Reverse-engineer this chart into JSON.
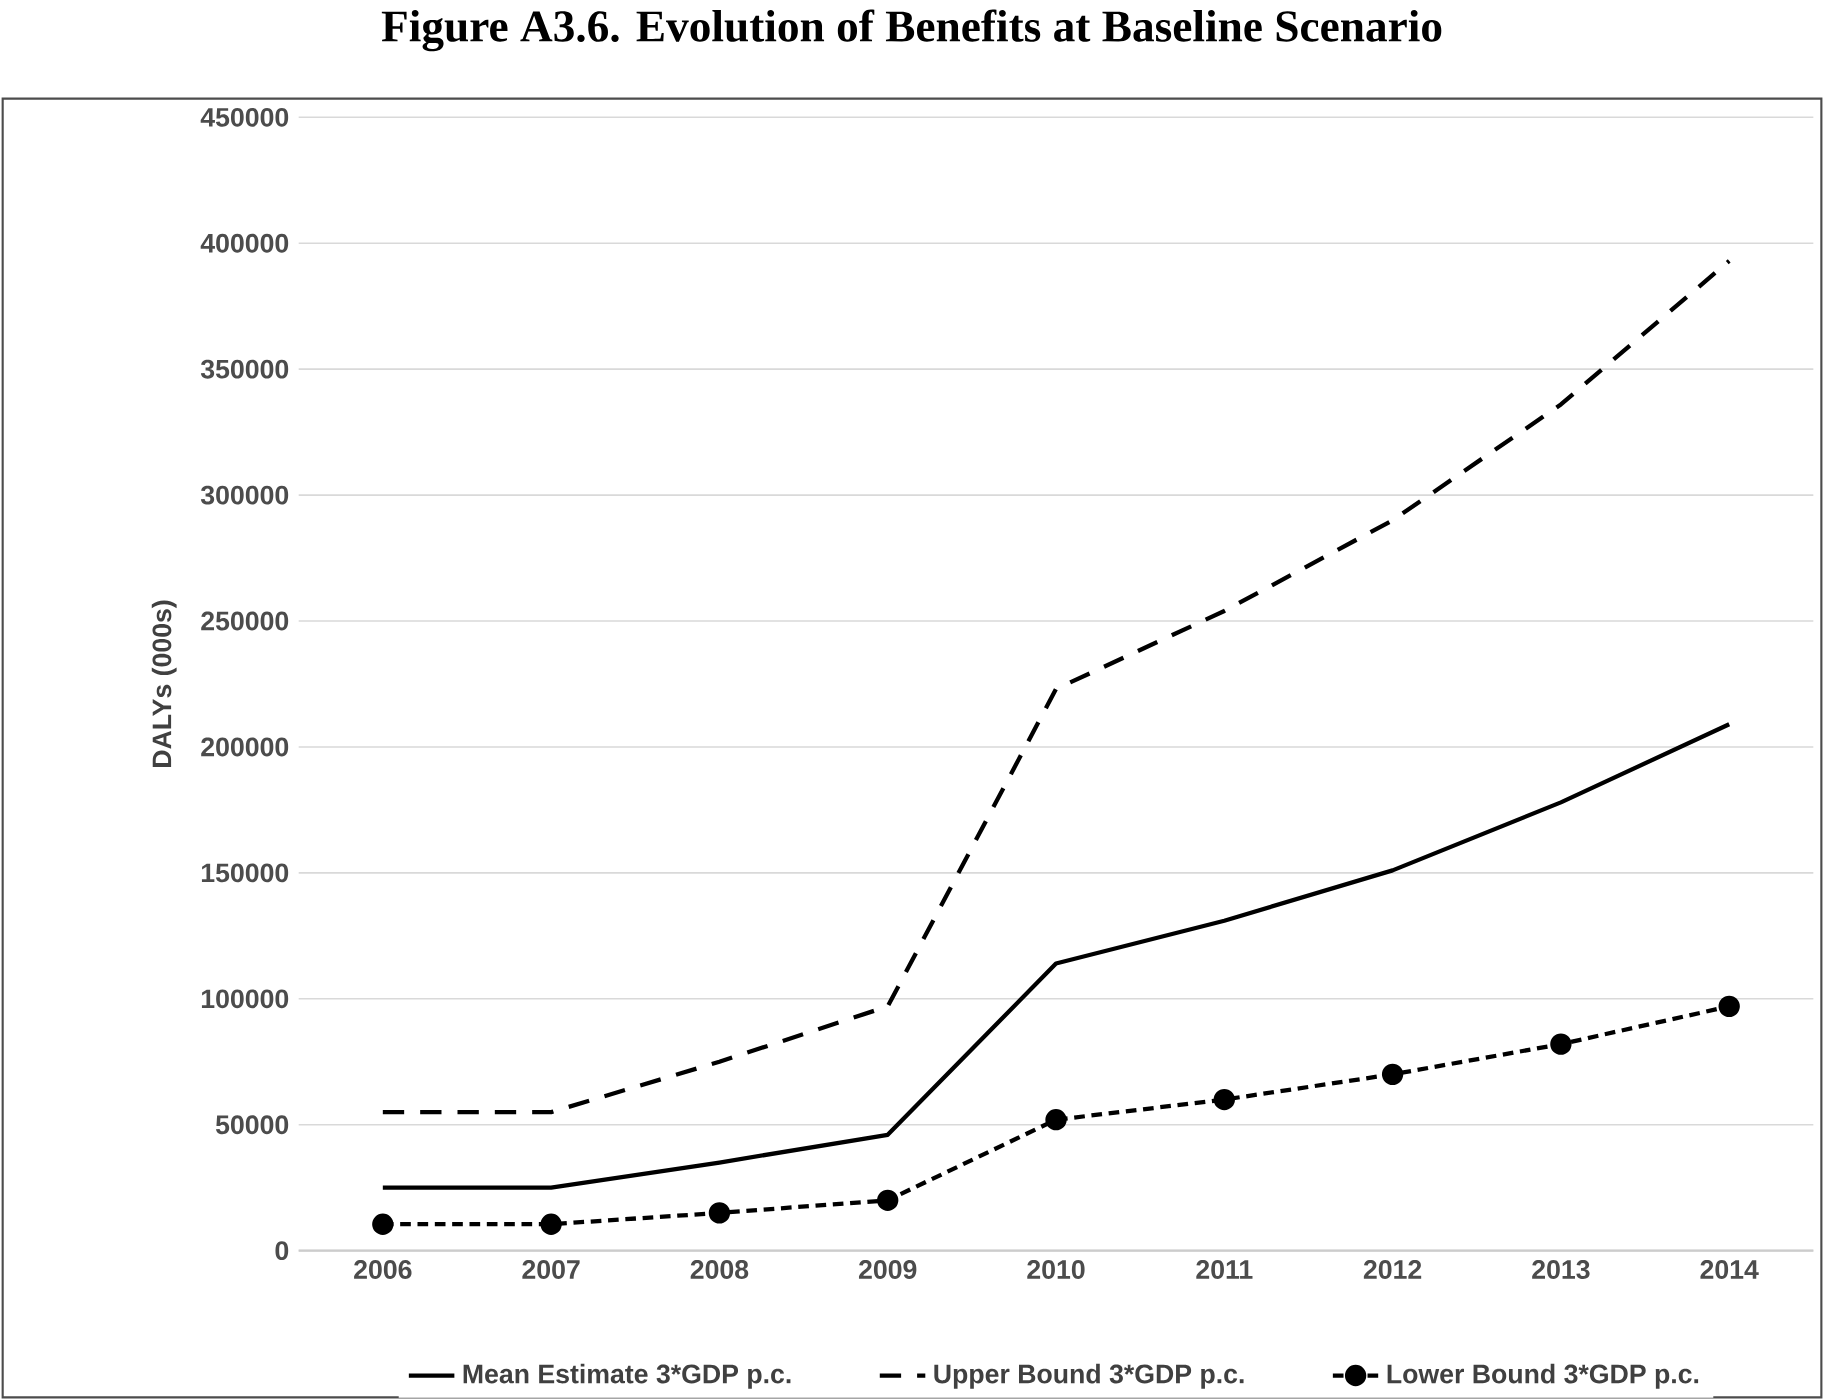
{
  "chart_data": {
    "type": "line",
    "title": "Figure A3.6. Evolution of Benefits at Baseline Scenario",
    "ylabel": "DALYs (000s)",
    "categories": [
      "2006",
      "2007",
      "2008",
      "2009",
      "2010",
      "2011",
      "2012",
      "2013",
      "2014"
    ],
    "series": [
      {
        "name": "Mean Estimate 3*GDP p.c.",
        "color": "#000000",
        "line_style": "solid",
        "marker": "none",
        "values": [
          25000,
          25000,
          35000,
          46000,
          114000,
          131000,
          151000,
          178000,
          209000
        ]
      },
      {
        "name": "Upper Bound 3*GDP p.c.",
        "color": "#000000",
        "line_style": "dashed",
        "marker": "none",
        "values": [
          55000,
          55000,
          75000,
          97000,
          223000,
          254000,
          290000,
          336000,
          393000
        ]
      },
      {
        "name": "Lower Bound 3*GDP p.c.",
        "color": "#000000",
        "line_style": "dotted",
        "marker": "circle",
        "values": [
          10500,
          10500,
          15000,
          20000,
          52000,
          60000,
          70000,
          82000,
          97000
        ]
      }
    ],
    "ylim": [
      0,
      450000
    ],
    "yticks": [
      0,
      50000,
      100000,
      150000,
      200000,
      250000,
      300000,
      350000,
      400000,
      450000
    ],
    "grid": "y",
    "legend": "bottom"
  }
}
